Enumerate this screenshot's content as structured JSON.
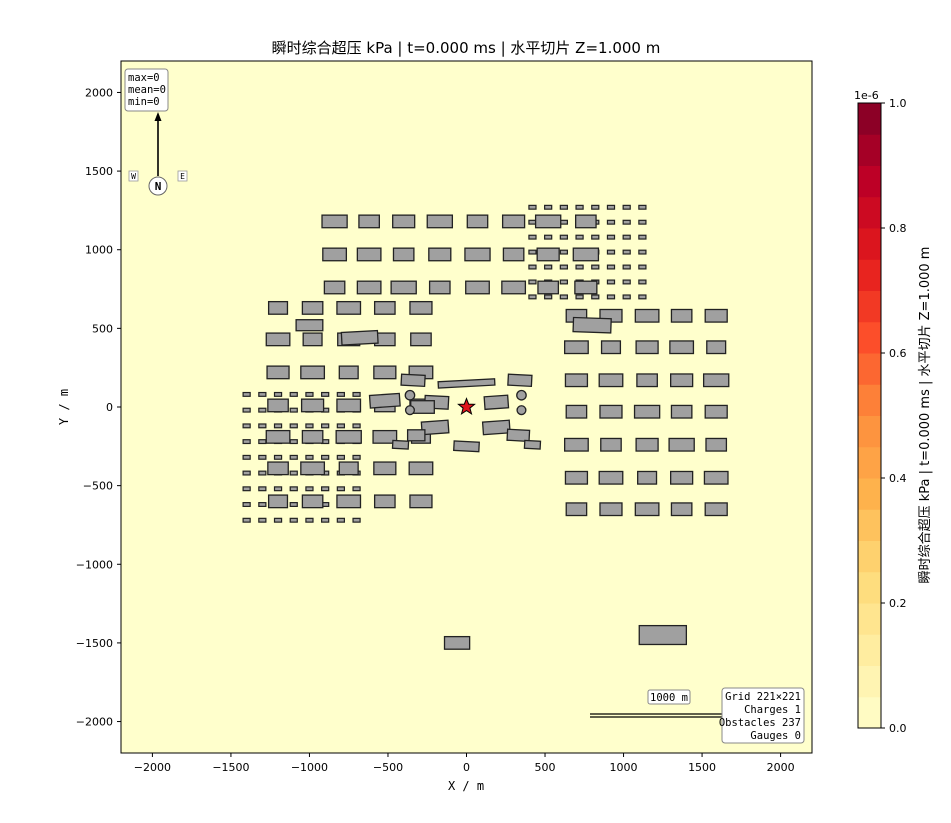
{
  "chart_data": {
    "type": "heatmap",
    "title": "瞬时综合超压 kPa  |  t=0.000 ms  |  水平切片 Z=1.000 m",
    "xlabel": "X / m",
    "ylabel": "Y / m",
    "xlim": [
      -2200,
      2200
    ],
    "ylim": [
      -2200,
      2200
    ],
    "xticks": [
      -2000,
      -1500,
      -1000,
      -500,
      0,
      500,
      1000,
      1500,
      2000
    ],
    "yticks": [
      2000,
      1500,
      1000,
      500,
      0,
      -500,
      -1000,
      -1500,
      -2000
    ],
    "grid": false,
    "field_value": 0,
    "colorbar": {
      "label": "瞬时综合超压 kPa  |  t=0.000 ms  |  水平切片 Z=1.000 m",
      "scale_text": "1e-6",
      "ticks": [
        "0.0",
        "0.2",
        "0.4",
        "0.6",
        "0.8",
        "1.0"
      ],
      "range": [
        0,
        1
      ],
      "colormap": "YlOrRd",
      "colors": [
        "#ffffcc",
        "#ffeda0",
        "#fed976",
        "#feb24c",
        "#fd8d3c",
        "#fc4e2a",
        "#e31a1c",
        "#bd0026",
        "#800026"
      ]
    },
    "stats_box": {
      "lines": [
        "max=0",
        "mean=0",
        "min=0"
      ]
    },
    "compass": {
      "north": "N",
      "west": "W",
      "east": "E"
    },
    "scale_bar": {
      "label": "1000 m",
      "length_m": 1000,
      "from_x": 800,
      "y": -1950
    },
    "info_box": {
      "lines": [
        "Grid 221×221",
        "Charges 1",
        "Obstacles 237",
        "Gauges 0"
      ]
    },
    "charge": {
      "x": 0,
      "y": 0
    },
    "obstacles": {
      "large_blocks": [
        {
          "x": -840,
          "y": 1180,
          "w": 160,
          "h": 80
        },
        {
          "x": -620,
          "y": 1180,
          "w": 130,
          "h": 80
        },
        {
          "x": -400,
          "y": 1180,
          "w": 140,
          "h": 80
        },
        {
          "x": -170,
          "y": 1180,
          "w": 160,
          "h": 80
        },
        {
          "x": 70,
          "y": 1180,
          "w": 130,
          "h": 80
        },
        {
          "x": 300,
          "y": 1180,
          "w": 140,
          "h": 80
        },
        {
          "x": 520,
          "y": 1180,
          "w": 160,
          "h": 80
        },
        {
          "x": 760,
          "y": 1180,
          "w": 130,
          "h": 80
        },
        {
          "x": -840,
          "y": 970,
          "w": 150,
          "h": 80
        },
        {
          "x": -620,
          "y": 970,
          "w": 150,
          "h": 80
        },
        {
          "x": -400,
          "y": 970,
          "w": 130,
          "h": 80
        },
        {
          "x": -170,
          "y": 970,
          "w": 140,
          "h": 80
        },
        {
          "x": 70,
          "y": 970,
          "w": 160,
          "h": 80
        },
        {
          "x": 300,
          "y": 970,
          "w": 130,
          "h": 80
        },
        {
          "x": 520,
          "y": 970,
          "w": 140,
          "h": 80
        },
        {
          "x": 760,
          "y": 970,
          "w": 160,
          "h": 80
        },
        {
          "x": -840,
          "y": 760,
          "w": 130,
          "h": 80
        },
        {
          "x": -620,
          "y": 760,
          "w": 150,
          "h": 80
        },
        {
          "x": -400,
          "y": 760,
          "w": 160,
          "h": 80
        },
        {
          "x": -170,
          "y": 760,
          "w": 130,
          "h": 80
        },
        {
          "x": 70,
          "y": 760,
          "w": 150,
          "h": 80
        },
        {
          "x": 300,
          "y": 760,
          "w": 150,
          "h": 80
        },
        {
          "x": 520,
          "y": 760,
          "w": 130,
          "h": 80
        },
        {
          "x": 760,
          "y": 760,
          "w": 140,
          "h": 80
        },
        {
          "x": -1200,
          "y": 630,
          "w": 120,
          "h": 80
        },
        {
          "x": -980,
          "y": 630,
          "w": 130,
          "h": 80
        },
        {
          "x": -750,
          "y": 630,
          "w": 150,
          "h": 80
        },
        {
          "x": -520,
          "y": 630,
          "w": 130,
          "h": 80
        },
        {
          "x": -290,
          "y": 630,
          "w": 140,
          "h": 80
        },
        {
          "x": -1200,
          "y": 430,
          "w": 150,
          "h": 80
        },
        {
          "x": -980,
          "y": 430,
          "w": 120,
          "h": 80
        },
        {
          "x": -750,
          "y": 430,
          "w": 140,
          "h": 80
        },
        {
          "x": -520,
          "y": 430,
          "w": 130,
          "h": 80
        },
        {
          "x": -290,
          "y": 430,
          "w": 130,
          "h": 80
        },
        {
          "x": -1200,
          "y": 220,
          "w": 140,
          "h": 80
        },
        {
          "x": -980,
          "y": 220,
          "w": 150,
          "h": 80
        },
        {
          "x": -750,
          "y": 220,
          "w": 120,
          "h": 80
        },
        {
          "x": -520,
          "y": 220,
          "w": 140,
          "h": 80
        },
        {
          "x": -290,
          "y": 220,
          "w": 150,
          "h": 80
        },
        {
          "x": -1200,
          "y": 10,
          "w": 130,
          "h": 80
        },
        {
          "x": -980,
          "y": 10,
          "w": 140,
          "h": 80
        },
        {
          "x": -750,
          "y": 10,
          "w": 150,
          "h": 80
        },
        {
          "x": -520,
          "y": 10,
          "w": 130,
          "h": 80
        },
        {
          "x": -290,
          "y": 10,
          "w": 140,
          "h": 80
        },
        {
          "x": -1200,
          "y": -190,
          "w": 150,
          "h": 80
        },
        {
          "x": -980,
          "y": -190,
          "w": 130,
          "h": 80
        },
        {
          "x": -750,
          "y": -190,
          "w": 160,
          "h": 80
        },
        {
          "x": -520,
          "y": -190,
          "w": 150,
          "h": 80
        },
        {
          "x": -290,
          "y": -190,
          "w": 120,
          "h": 80
        },
        {
          "x": -1200,
          "y": -390,
          "w": 130,
          "h": 80
        },
        {
          "x": -980,
          "y": -390,
          "w": 150,
          "h": 80
        },
        {
          "x": -750,
          "y": -390,
          "w": 120,
          "h": 80
        },
        {
          "x": -520,
          "y": -390,
          "w": 140,
          "h": 80
        },
        {
          "x": -290,
          "y": -390,
          "w": 150,
          "h": 80
        },
        {
          "x": -1200,
          "y": -600,
          "w": 120,
          "h": 80
        },
        {
          "x": -980,
          "y": -600,
          "w": 130,
          "h": 80
        },
        {
          "x": -750,
          "y": -600,
          "w": 150,
          "h": 80
        },
        {
          "x": -520,
          "y": -600,
          "w": 130,
          "h": 80
        },
        {
          "x": -290,
          "y": -600,
          "w": 140,
          "h": 80
        },
        {
          "x": 700,
          "y": 580,
          "w": 130,
          "h": 80
        },
        {
          "x": 920,
          "y": 580,
          "w": 140,
          "h": 80
        },
        {
          "x": 1150,
          "y": 580,
          "w": 150,
          "h": 80
        },
        {
          "x": 1370,
          "y": 580,
          "w": 130,
          "h": 80
        },
        {
          "x": 1590,
          "y": 580,
          "w": 140,
          "h": 80
        },
        {
          "x": 700,
          "y": 380,
          "w": 150,
          "h": 80
        },
        {
          "x": 920,
          "y": 380,
          "w": 120,
          "h": 80
        },
        {
          "x": 1150,
          "y": 380,
          "w": 140,
          "h": 80
        },
        {
          "x": 1370,
          "y": 380,
          "w": 150,
          "h": 80
        },
        {
          "x": 1590,
          "y": 380,
          "w": 120,
          "h": 80
        },
        {
          "x": 700,
          "y": 170,
          "w": 140,
          "h": 80
        },
        {
          "x": 920,
          "y": 170,
          "w": 150,
          "h": 80
        },
        {
          "x": 1150,
          "y": 170,
          "w": 130,
          "h": 80
        },
        {
          "x": 1370,
          "y": 170,
          "w": 140,
          "h": 80
        },
        {
          "x": 1590,
          "y": 170,
          "w": 160,
          "h": 80
        },
        {
          "x": 700,
          "y": -30,
          "w": 130,
          "h": 80
        },
        {
          "x": 920,
          "y": -30,
          "w": 140,
          "h": 80
        },
        {
          "x": 1150,
          "y": -30,
          "w": 160,
          "h": 80
        },
        {
          "x": 1370,
          "y": -30,
          "w": 130,
          "h": 80
        },
        {
          "x": 1590,
          "y": -30,
          "w": 140,
          "h": 80
        },
        {
          "x": 700,
          "y": -240,
          "w": 150,
          "h": 80
        },
        {
          "x": 920,
          "y": -240,
          "w": 130,
          "h": 80
        },
        {
          "x": 1150,
          "y": -240,
          "w": 140,
          "h": 80
        },
        {
          "x": 1370,
          "y": -240,
          "w": 160,
          "h": 80
        },
        {
          "x": 1590,
          "y": -240,
          "w": 130,
          "h": 80
        },
        {
          "x": 700,
          "y": -450,
          "w": 140,
          "h": 80
        },
        {
          "x": 920,
          "y": -450,
          "w": 150,
          "h": 80
        },
        {
          "x": 1150,
          "y": -450,
          "w": 120,
          "h": 80
        },
        {
          "x": 1370,
          "y": -450,
          "w": 140,
          "h": 80
        },
        {
          "x": 1590,
          "y": -450,
          "w": 150,
          "h": 80
        },
        {
          "x": 700,
          "y": -650,
          "w": 130,
          "h": 80
        },
        {
          "x": 920,
          "y": -650,
          "w": 140,
          "h": 80
        },
        {
          "x": 1150,
          "y": -650,
          "w": 150,
          "h": 80
        },
        {
          "x": 1370,
          "y": -650,
          "w": 130,
          "h": 80
        },
        {
          "x": 1590,
          "y": -650,
          "w": 140,
          "h": 80
        },
        {
          "x": -1000,
          "y": 520,
          "w": 170,
          "h": 70
        },
        {
          "x": -680,
          "y": 440,
          "w": 230,
          "h": 80,
          "rot": -3
        },
        {
          "x": -340,
          "y": 170,
          "w": 150,
          "h": 70,
          "rot": 3
        },
        {
          "x": 0,
          "y": 150,
          "w": 360,
          "h": 40,
          "rot": -3
        },
        {
          "x": 340,
          "y": 170,
          "w": 150,
          "h": 70,
          "rot": 3
        },
        {
          "x": -520,
          "y": 40,
          "w": 190,
          "h": 80,
          "rot": -4
        },
        {
          "x": -190,
          "y": 30,
          "w": 150,
          "h": 80,
          "rot": 3
        },
        {
          "x": 190,
          "y": 30,
          "w": 150,
          "h": 80,
          "rot": -4
        },
        {
          "x": -280,
          "y": 0,
          "w": 150,
          "h": 80
        },
        {
          "x": -200,
          "y": -130,
          "w": 170,
          "h": 80,
          "rot": -4
        },
        {
          "x": 190,
          "y": -130,
          "w": 170,
          "h": 80,
          "rot": -4
        },
        {
          "x": -320,
          "y": -180,
          "w": 110,
          "h": 70
        },
        {
          "x": 330,
          "y": -180,
          "w": 140,
          "h": 70,
          "rot": 3
        },
        {
          "x": -420,
          "y": -240,
          "w": 100,
          "h": 50,
          "rot": 3
        },
        {
          "x": 420,
          "y": -240,
          "w": 100,
          "h": 50,
          "rot": 3
        },
        {
          "x": 0,
          "y": -250,
          "w": 160,
          "h": 60,
          "rot": 3
        },
        {
          "x": 800,
          "y": 520,
          "w": 240,
          "h": 90,
          "rot": 2
        },
        {
          "x": -60,
          "y": -1500,
          "w": 160,
          "h": 80
        },
        {
          "x": 1250,
          "y": -1450,
          "w": 300,
          "h": 120
        }
      ],
      "cylinders": [
        {
          "x": -360,
          "y": 75,
          "r": 30
        },
        {
          "x": 350,
          "y": 75,
          "r": 30
        },
        {
          "x": -360,
          "y": -20,
          "r": 28
        },
        {
          "x": 350,
          "y": -20,
          "r": 28
        }
      ],
      "small_grids": [
        {
          "x0": -1400,
          "y0": -720,
          "nx": 8,
          "ny": 9,
          "dx": 100,
          "dy": 100,
          "w": 45,
          "h": 24
        },
        {
          "x0": 420,
          "y0": 700,
          "nx": 8,
          "ny": 7,
          "dx": 100,
          "dy": 95,
          "w": 45,
          "h": 24
        }
      ]
    }
  }
}
